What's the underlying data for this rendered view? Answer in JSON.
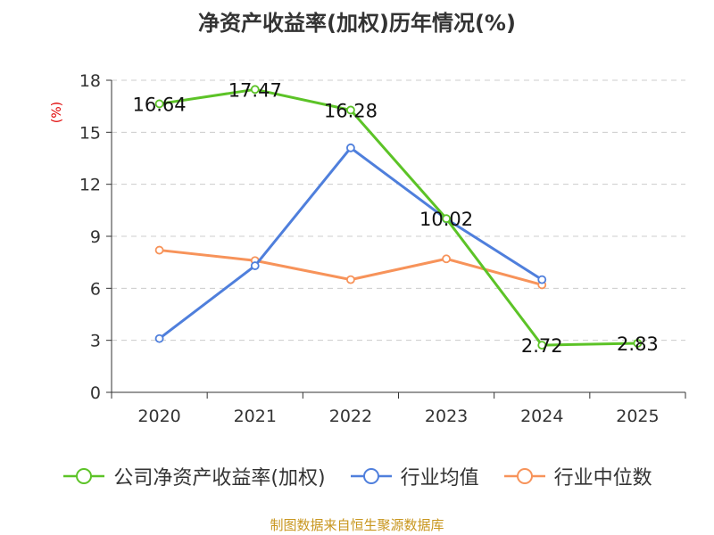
{
  "title": "净资产收益率(加权)历年情况(%)",
  "source_note": "制图数据来自恒生聚源数据库",
  "chart_data": {
    "type": "line",
    "title": "净资产收益率(加权)历年情况(%)",
    "xlabel": "",
    "ylabel": "(%)",
    "categories": [
      "2020",
      "2021",
      "2022",
      "2023",
      "2024",
      "2025"
    ],
    "ylim": [
      0,
      18
    ],
    "yticks": [
      0,
      3,
      6,
      9,
      12,
      15,
      18
    ],
    "grid": true,
    "legend_position": "bottom",
    "series": [
      {
        "name": "公司净资产收益率(加权)",
        "color": "#5cc327",
        "values": [
          16.64,
          17.47,
          16.28,
          10.02,
          2.72,
          2.83
        ],
        "labels": [
          "16.64",
          "17.47",
          "16.28",
          "10.02",
          "2.72",
          "2.83"
        ]
      },
      {
        "name": "行业均值",
        "color": "#4f7fdc",
        "values": [
          3.1,
          7.3,
          14.1,
          10.0,
          6.5,
          null
        ]
      },
      {
        "name": "行业中位数",
        "color": "#f7935a",
        "values": [
          8.2,
          7.6,
          6.5,
          7.7,
          6.2,
          null
        ]
      }
    ]
  }
}
